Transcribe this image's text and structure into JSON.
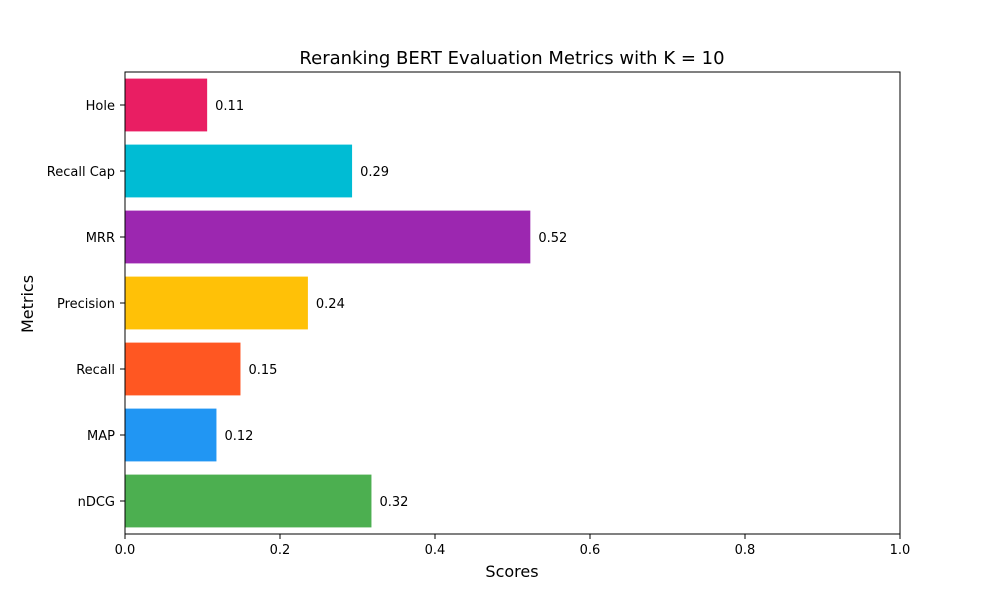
{
  "chart_data": {
    "type": "bar",
    "orientation": "horizontal",
    "title": "Reranking BERT Evaluation Metrics with K = 10",
    "xlabel": "Scores",
    "ylabel": "Metrics",
    "xlim": [
      0,
      1.0
    ],
    "xticks": [
      "0.0",
      "0.2",
      "0.4",
      "0.6",
      "0.8",
      "1.0"
    ],
    "grid": false,
    "categories": [
      "nDCG",
      "MAP",
      "Recall",
      "Precision",
      "MRR",
      "Recall Cap",
      "Hole"
    ],
    "values": [
      0.318,
      0.118,
      0.149,
      0.236,
      0.523,
      0.293,
      0.106
    ],
    "data_labels": [
      "0.32",
      "0.12",
      "0.15",
      "0.24",
      "0.52",
      "0.29",
      "0.11"
    ],
    "colors": [
      "#4CAF50",
      "#2196F3",
      "#FF5722",
      "#FFC107",
      "#9C27B0",
      "#00BCD4",
      "#E91E63"
    ]
  }
}
